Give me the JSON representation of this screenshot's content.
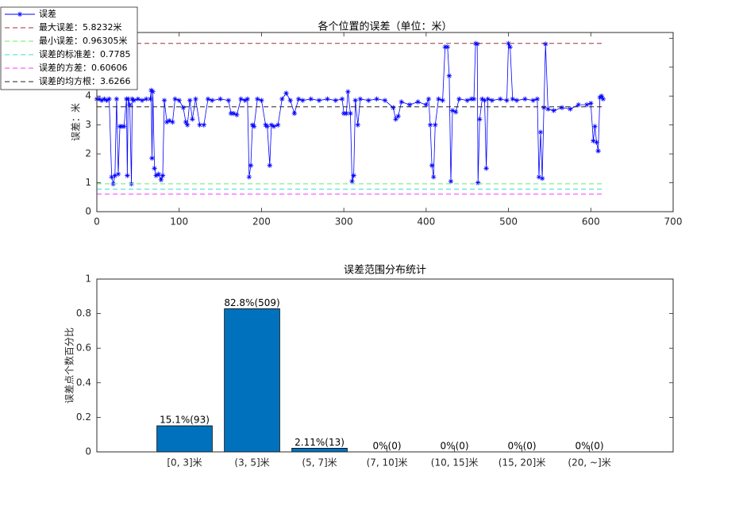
{
  "chart_data": [
    {
      "type": "line",
      "title": "各个位置的误差（单位：米）",
      "ylabel": "误差：米",
      "xlim": [
        0,
        700
      ],
      "xticks": [
        0,
        100,
        200,
        300,
        400,
        500,
        600,
        700
      ],
      "ylim": [
        0,
        6.2
      ],
      "yticks": [
        0,
        1,
        2,
        3,
        4,
        5,
        6
      ],
      "legend": "upper-left",
      "series": [
        {
          "name": "误差",
          "color": "#0000ff",
          "style": "solid",
          "marker": "star",
          "x": [
            0,
            3,
            6,
            9,
            12,
            15,
            18,
            20,
            22,
            24,
            26,
            28,
            30,
            33,
            36,
            37,
            38,
            40,
            42,
            43,
            45,
            50,
            55,
            60,
            65,
            66,
            67,
            68,
            70,
            72,
            75,
            78,
            80,
            82,
            85,
            88,
            92,
            95,
            100,
            105,
            108,
            110,
            113,
            116,
            120,
            125,
            130,
            135,
            140,
            150,
            160,
            163,
            166,
            170,
            175,
            180,
            183,
            185,
            187,
            189,
            191,
            195,
            200,
            205,
            207,
            210,
            212,
            215,
            220,
            225,
            230,
            235,
            240,
            245,
            250,
            260,
            270,
            280,
            290,
            298,
            300,
            303,
            305,
            308,
            310,
            312,
            314,
            317,
            320,
            330,
            340,
            350,
            360,
            363,
            366,
            370,
            380,
            390,
            400,
            403,
            405,
            407,
            409,
            411,
            415,
            420,
            423,
            426,
            428,
            430,
            432,
            436,
            440,
            450,
            455,
            458,
            460,
            462,
            463,
            465,
            468,
            471,
            473,
            475,
            480,
            490,
            498,
            500,
            502,
            505,
            510,
            520,
            530,
            535,
            537,
            539,
            541,
            543,
            545,
            548,
            555,
            565,
            575,
            585,
            595,
            600,
            603,
            605,
            607,
            609,
            611,
            613,
            615
          ],
          "values": [
            3.9,
            3.9,
            3.85,
            3.9,
            3.85,
            3.9,
            1.2,
            0.96,
            1.25,
            3.9,
            1.3,
            2.95,
            2.95,
            2.95,
            3.9,
            1.25,
            3.9,
            3.7,
            0.96,
            3.9,
            3.85,
            3.9,
            3.85,
            3.9,
            3.9,
            4.2,
            1.85,
            4.15,
            1.5,
            1.25,
            1.3,
            1.1,
            1.25,
            3.85,
            3.1,
            3.15,
            3.1,
            3.9,
            3.85,
            3.6,
            3.1,
            3.0,
            3.85,
            3.2,
            3.9,
            3.0,
            3.0,
            3.9,
            3.85,
            3.9,
            3.85,
            3.4,
            3.4,
            3.35,
            3.9,
            3.85,
            3.9,
            1.2,
            1.6,
            3.0,
            2.95,
            3.9,
            3.85,
            3.0,
            2.95,
            1.6,
            3.0,
            2.95,
            3.0,
            3.9,
            4.1,
            3.85,
            3.4,
            3.9,
            3.85,
            3.9,
            3.85,
            3.9,
            3.85,
            3.9,
            3.4,
            3.4,
            4.15,
            3.4,
            1.05,
            1.25,
            3.85,
            3.0,
            3.9,
            3.85,
            3.9,
            3.85,
            3.6,
            3.2,
            3.3,
            3.8,
            3.7,
            3.8,
            3.7,
            3.9,
            3.0,
            1.6,
            1.2,
            3.0,
            3.9,
            3.85,
            5.7,
            5.7,
            4.7,
            1.05,
            3.5,
            3.45,
            3.9,
            3.85,
            3.9,
            3.9,
            5.82,
            5.8,
            1.0,
            3.2,
            3.9,
            3.85,
            1.5,
            3.9,
            3.85,
            3.9,
            3.85,
            5.82,
            5.7,
            3.9,
            3.85,
            3.9,
            3.85,
            3.9,
            1.2,
            2.75,
            1.15,
            3.6,
            5.8,
            3.55,
            3.5,
            3.6,
            3.55,
            3.7,
            3.7,
            3.75,
            2.45,
            2.95,
            2.4,
            2.1,
            3.95,
            4.0,
            3.9
          ]
        },
        {
          "name": "最大误差：5.8232米",
          "color": "#a0303a",
          "style": "dashed",
          "x": [
            0,
            615
          ],
          "values": [
            5.8232,
            5.8232
          ]
        },
        {
          "name": "最小误差：0.96305米",
          "color": "#66ee66",
          "style": "dashed",
          "x": [
            0,
            615
          ],
          "values": [
            0.96305,
            0.96305
          ]
        },
        {
          "name": "误差的标准差：0.7785",
          "color": "#33dddd",
          "style": "dashed",
          "x": [
            0,
            615
          ],
          "values": [
            0.7785,
            0.7785
          ]
        },
        {
          "name": "误差的方差：0.60606",
          "color": "#ff33ff",
          "style": "dashed",
          "x": [
            0,
            615
          ],
          "values": [
            0.60606,
            0.60606
          ]
        },
        {
          "name": "误差的均方根：3.6266",
          "color": "#222222",
          "style": "dashed",
          "x": [
            0,
            615
          ],
          "values": [
            3.6266,
            3.6266
          ]
        }
      ]
    },
    {
      "type": "bar",
      "title": "误差范围分布统计",
      "ylabel": "误差点个数百分比",
      "categories": [
        "[0, 3]米",
        "(3, 5]米",
        "(5, 7]米",
        "(7, 10]米",
        "(10, 15]米",
        "(15, 20]米",
        "(20, ~]米"
      ],
      "values": [
        0.151,
        0.828,
        0.0211,
        0,
        0,
        0,
        0
      ],
      "value_labels": [
        "15.1%(93)",
        "82.8%(509)",
        "2.11%(13)",
        "0%(0)",
        "0%(0)",
        "0%(0)",
        "0%(0)"
      ],
      "color": "#0072bd",
      "ylim": [
        0,
        1
      ],
      "yticks": [
        0,
        0.2,
        0.4,
        0.6,
        0.8,
        1
      ]
    }
  ]
}
